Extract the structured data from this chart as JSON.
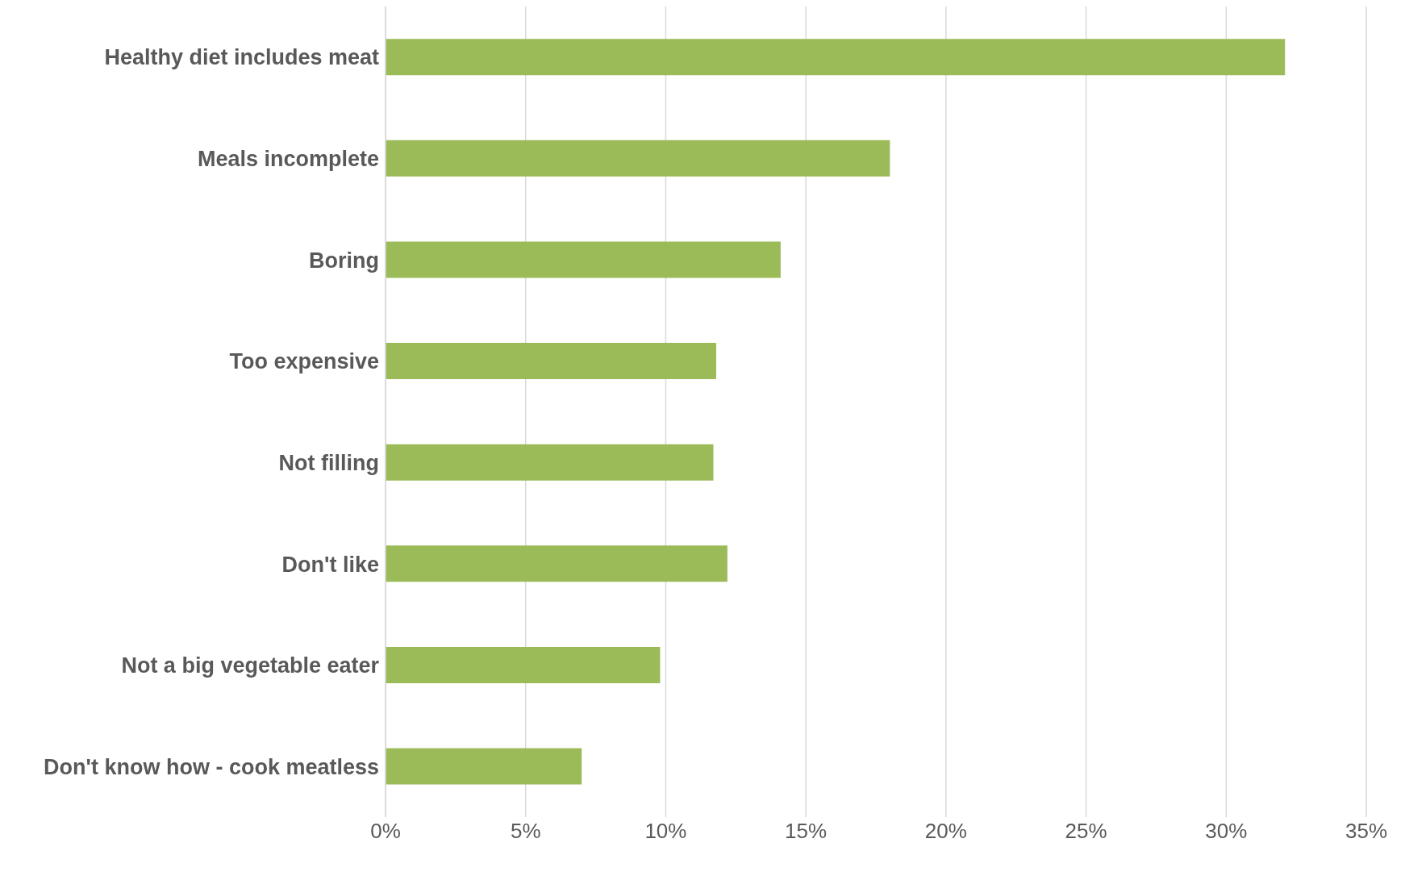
{
  "chart_data": {
    "type": "bar",
    "orientation": "horizontal",
    "categories": [
      "Healthy diet includes meat",
      "Meals incomplete",
      "Boring",
      "Too expensive",
      "Not filling",
      "Don't like",
      "Not a big vegetable eater",
      "Don't know how - cook meatless"
    ],
    "values": [
      32.1,
      18.0,
      14.1,
      11.8,
      11.7,
      12.2,
      9.8,
      7.0
    ],
    "color": "#9bbb59",
    "xlim": [
      0,
      35
    ],
    "xticks": [
      {
        "value": 0,
        "label": "0%"
      },
      {
        "value": 5,
        "label": "5%"
      },
      {
        "value": 10,
        "label": "10%"
      },
      {
        "value": 15,
        "label": "15%"
      },
      {
        "value": 20,
        "label": "20%"
      },
      {
        "value": 25,
        "label": "25%"
      },
      {
        "value": 30,
        "label": "30%"
      },
      {
        "value": 35,
        "label": "35%"
      }
    ],
    "grid": "x"
  }
}
